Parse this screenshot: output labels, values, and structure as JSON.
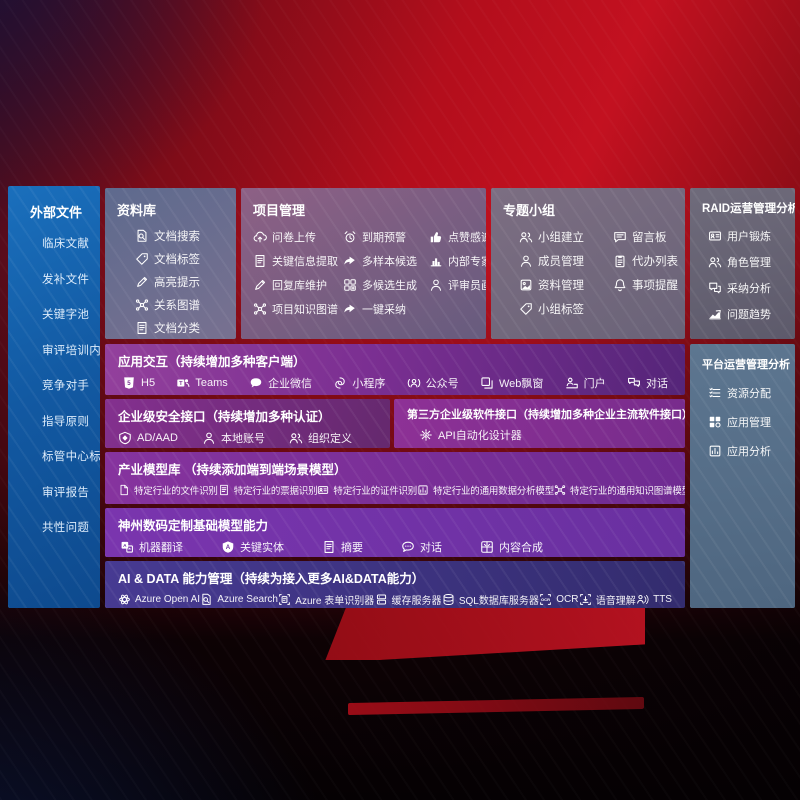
{
  "colors": {
    "background_red": "#b90f1b",
    "sidebar_blue": "#1463ac",
    "panel_slate": "#6a6f87",
    "panel_mauve": "#7e5f82",
    "panel_steel": "#57708c",
    "row_purple": "#7d2f93",
    "row_violet": "#7434a8",
    "row_indigo": "#41338a",
    "text_white": "#ffffff"
  },
  "sidebar": {
    "title": "外部文件",
    "items": [
      "临床文献",
      "发补文件",
      "关键字池",
      "审评培训内容",
      "竞争对手",
      "指导原则",
      "标管中心标准",
      "审评报告",
      "共性问题"
    ]
  },
  "repo": {
    "title": "资料库",
    "items": [
      {
        "label": "文档搜索",
        "icon": "doc-search"
      },
      {
        "label": "文档标签",
        "icon": "tag"
      },
      {
        "label": "高亮提示",
        "icon": "highlight-pen"
      },
      {
        "label": "关系图谱",
        "icon": "graph"
      },
      {
        "label": "文档分类",
        "icon": "doc-category"
      }
    ]
  },
  "project": {
    "title": "项目管理",
    "items": [
      {
        "label": "问卷上传",
        "icon": "cloud-upload"
      },
      {
        "label": "到期预警",
        "icon": "alarm"
      },
      {
        "label": "点赞感谢",
        "icon": "thumbs-up"
      },
      {
        "label": "关键信息提取",
        "icon": "doc-extract"
      },
      {
        "label": "多样本候选",
        "icon": "reply-arrow"
      },
      {
        "label": "内部专家排名",
        "icon": "ranking"
      },
      {
        "label": "回复库维护",
        "icon": "maintain-pen"
      },
      {
        "label": "多候选生成",
        "icon": "grid-generate"
      },
      {
        "label": "评审员画像",
        "icon": "person"
      },
      {
        "label": "项目知识图谱",
        "icon": "knowledge-graph"
      },
      {
        "label": "一键采纳",
        "icon": "adopt-arrow"
      }
    ]
  },
  "groups": {
    "title": "专题小组",
    "items": [
      {
        "label": "小组建立",
        "icon": "team-create"
      },
      {
        "label": "留言板",
        "icon": "message-board"
      },
      {
        "label": "成员管理",
        "icon": "member-manage"
      },
      {
        "label": "代办列表",
        "icon": "todo-list"
      },
      {
        "label": "资料管理",
        "icon": "file-manage"
      },
      {
        "label": "事项提醒",
        "icon": "reminder-bell"
      },
      {
        "label": "小组标签",
        "icon": "group-tag"
      }
    ]
  },
  "raid": {
    "title": "RAID运营管理分析",
    "items": [
      {
        "label": "用户锻炼",
        "icon": "id-card"
      },
      {
        "label": "角色管理",
        "icon": "role-people"
      },
      {
        "label": "采纳分析",
        "icon": "chat-qa"
      },
      {
        "label": "问题趋势",
        "icon": "trend"
      }
    ]
  },
  "platform": {
    "title": "平台运营管理分析",
    "items": [
      {
        "label": "资源分配",
        "icon": "resource-list"
      },
      {
        "label": "应用管理",
        "icon": "app-grid"
      },
      {
        "label": "应用分析",
        "icon": "app-report"
      }
    ]
  },
  "interaction": {
    "title": "应用交互（持续增加多种客户端）",
    "items": [
      {
        "label": "H5",
        "icon": "html5"
      },
      {
        "label": "Teams",
        "icon": "teams"
      },
      {
        "label": "企业微信",
        "icon": "wechat-work"
      },
      {
        "label": "小程序",
        "icon": "miniprogram"
      },
      {
        "label": "公众号",
        "icon": "official-account"
      },
      {
        "label": "Web飘窗",
        "icon": "web-window"
      },
      {
        "label": "门户",
        "icon": "portal"
      },
      {
        "label": "对话",
        "icon": "dialog"
      }
    ]
  },
  "security": {
    "title": "企业级安全接口（持续增加多种认证）",
    "items": [
      {
        "label": "AD/AAD",
        "icon": "shield-ad"
      },
      {
        "label": "本地账号",
        "icon": "local-account"
      },
      {
        "label": "组织定义",
        "icon": "org-define"
      }
    ]
  },
  "thirdparty": {
    "title": "第三方企业级软件接口（持续增加多种企业主流软件接口）",
    "items": [
      {
        "label": "API自动化设计器",
        "icon": "api-gear"
      }
    ]
  },
  "models": {
    "title": "产业模型库 （持续添加端到端场景模型）",
    "items": [
      {
        "label": "特定行业的文件识别",
        "icon": "doc"
      },
      {
        "label": "特定行业的票据识别",
        "icon": "receipt"
      },
      {
        "label": "特定行业的证件识别",
        "icon": "id-card"
      },
      {
        "label": "特定行业的通用数据分析模型",
        "icon": "data-analysis"
      },
      {
        "label": "特定行业的通用知识图谱模型",
        "icon": "knowledge-graph"
      }
    ]
  },
  "foundation": {
    "title": "神州数码定制基础模型能力",
    "items": [
      {
        "label": "机器翻译",
        "icon": "translate"
      },
      {
        "label": "关键实体",
        "icon": "entity"
      },
      {
        "label": "摘要",
        "icon": "summary"
      },
      {
        "label": "对话",
        "icon": "chat-dots"
      },
      {
        "label": "内容合成",
        "icon": "compose"
      }
    ]
  },
  "aidata": {
    "title": "AI & DATA 能力管理（持续为接入更多AI&DATA能力）",
    "items": [
      {
        "label": "Azure Open AI",
        "icon": "openai"
      },
      {
        "label": "Azure Search",
        "icon": "azure-search"
      },
      {
        "label": "Azure 表单识别器",
        "icon": "form-recognizer"
      },
      {
        "label": "缓存服务器",
        "icon": "cache-server"
      },
      {
        "label": "SQL数据库服务器",
        "icon": "sql-database"
      },
      {
        "label": "OCR",
        "icon": "ocr"
      },
      {
        "label": "语音理解",
        "icon": "speech"
      },
      {
        "label": "TTS",
        "icon": "tts"
      }
    ]
  }
}
